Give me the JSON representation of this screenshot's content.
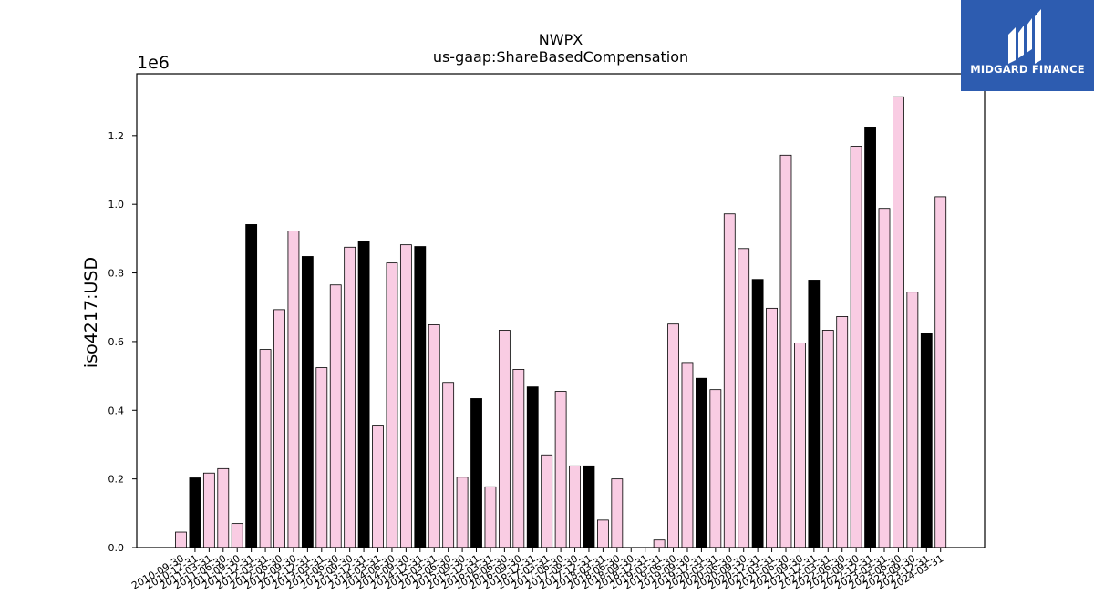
{
  "chart_data": {
    "type": "bar",
    "title": "NWPX",
    "subtitle": "us-gaap:ShareBasedCompensation",
    "ylabel": "iso4217:USD",
    "xlabel": "",
    "y_offset_label": "1e6",
    "y_scale": 1000000,
    "ylim": [
      0,
      1380000
    ],
    "yticks": [
      0,
      200000,
      400000,
      600000,
      800000,
      1000000,
      1200000
    ],
    "ytick_labels": [
      "0.0",
      "0.2",
      "0.4",
      "0.6",
      "0.8",
      "1.0",
      "1.2"
    ],
    "grid": false,
    "colors": {
      "default": "#f9cce3",
      "highlight": "#000000",
      "edge": "#000000"
    },
    "categories": [
      "2010-09-30",
      "2010-12-31",
      "2011-03-31",
      "2011-06-30",
      "2011-09-30",
      "2011-12-31",
      "2012-03-31",
      "2012-06-30",
      "2012-09-30",
      "2012-12-31",
      "2013-03-31",
      "2013-06-30",
      "2013-09-30",
      "2013-12-31",
      "2014-03-31",
      "2014-06-30",
      "2014-09-30",
      "2014-12-31",
      "2015-03-31",
      "2015-06-30",
      "2015-09-30",
      "2015-12-31",
      "2016-03-31",
      "2016-06-30",
      "2016-09-30",
      "2016-12-31",
      "2017-03-31",
      "2017-06-30",
      "2017-09-30",
      "2017-12-31",
      "2018-03-31",
      "2018-06-30",
      "2018-09-30",
      "2018-12-31",
      "2019-03-31",
      "2019-06-30",
      "2019-09-30",
      "2019-12-31",
      "2020-03-31",
      "2020-06-30",
      "2020-09-30",
      "2020-12-31",
      "2021-03-31",
      "2021-06-30",
      "2021-09-30",
      "2021-12-31",
      "2022-03-31",
      "2022-06-30",
      "2022-09-30",
      "2022-12-31",
      "2023-03-31",
      "2023-06-30",
      "2023-09-30",
      "2023-12-31",
      "2024-03-31"
    ],
    "values": [
      45000,
      203000,
      217000,
      230000,
      70000,
      941000,
      577000,
      693000,
      922000,
      848000,
      524000,
      765000,
      875000,
      893000,
      354000,
      829000,
      882000,
      877000,
      649000,
      481000,
      205000,
      434000,
      177000,
      633000,
      519000,
      468000,
      270000,
      455000,
      238000,
      238000,
      80000,
      200000,
      0,
      0,
      22000,
      651000,
      539000,
      493000,
      460000,
      972000,
      871000,
      781000,
      697000,
      1143000,
      596000,
      779000,
      633000,
      673000,
      1169000,
      1225000,
      988000,
      1313000,
      744000,
      623000,
      1022000
    ],
    "highlight": [
      false,
      true,
      false,
      false,
      false,
      true,
      false,
      false,
      false,
      true,
      false,
      false,
      false,
      true,
      false,
      false,
      false,
      true,
      false,
      false,
      false,
      true,
      false,
      false,
      false,
      true,
      false,
      false,
      false,
      true,
      false,
      false,
      false,
      false,
      false,
      false,
      false,
      true,
      false,
      false,
      false,
      true,
      false,
      false,
      false,
      true,
      false,
      false,
      false,
      true,
      false,
      false,
      false,
      true,
      false
    ]
  },
  "logo": {
    "text": "MIDGARD FINANCE",
    "icon": "midgard-logo-icon",
    "background": "#2d5cb0"
  }
}
